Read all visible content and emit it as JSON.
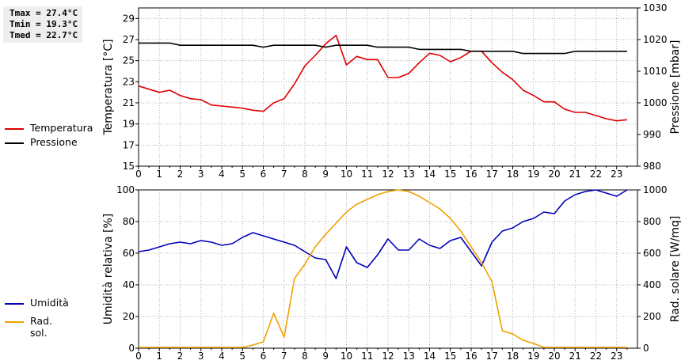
{
  "stats": {
    "tmax": "Tmax = 27.4°C",
    "tmin": "Tmin = 19.3°C",
    "tmed": "Tmed = 22.7°C"
  },
  "colors": {
    "temperature": "#dd0000",
    "pressure": "#000000",
    "humidity": "#0000bb",
    "solar": "#f0a000",
    "grid": "#b0b0b0"
  },
  "chart_data": [
    {
      "type": "line",
      "grid": true,
      "legend_placement": "left",
      "xlabel": "",
      "xticks": [
        "0",
        "1",
        "2",
        "3",
        "4",
        "5",
        "6",
        "7",
        "8",
        "9",
        "10",
        "11",
        "12",
        "13",
        "14",
        "15",
        "16",
        "17",
        "18",
        "19",
        "20",
        "21",
        "22",
        "23"
      ],
      "xlim": [
        0,
        24
      ],
      "ylabel": "Temperatura [°C]",
      "ylim": [
        15,
        30
      ],
      "yticks": [
        "15",
        "17",
        "19",
        "21",
        "23",
        "25",
        "27",
        "29"
      ],
      "y2label": "Pressione [mbar]",
      "y2lim": [
        980,
        1030
      ],
      "y2ticks": [
        "980",
        "990",
        "1000",
        "1010",
        "1020",
        "1030"
      ],
      "series": [
        {
          "name": "Temperatura",
          "axis": "left",
          "x": [
            0,
            0.5,
            1,
            1.5,
            2,
            2.5,
            3,
            3.5,
            4,
            4.5,
            5,
            5.5,
            6,
            6.5,
            7,
            7.5,
            8,
            8.5,
            9,
            9.5,
            10,
            10.5,
            11,
            11.5,
            12,
            12.5,
            13,
            13.5,
            14,
            14.5,
            15,
            15.5,
            16,
            16.5,
            17,
            17.5,
            18,
            18.5,
            19,
            19.5,
            20,
            20.5,
            21,
            21.5,
            22,
            22.5,
            23,
            23.5
          ],
          "values": [
            22.6,
            22.3,
            22.0,
            22.2,
            21.7,
            21.4,
            21.3,
            20.8,
            20.7,
            20.6,
            20.5,
            20.3,
            20.2,
            21.0,
            21.4,
            22.8,
            24.5,
            25.5,
            26.6,
            27.4,
            24.6,
            25.4,
            25.1,
            25.1,
            23.4,
            23.4,
            23.8,
            24.8,
            25.7,
            25.5,
            24.9,
            25.3,
            25.9,
            25.9,
            24.8,
            23.9,
            23.2,
            22.2,
            21.7,
            21.1,
            21.1,
            20.4,
            20.1,
            20.1,
            19.8,
            19.5,
            19.3,
            19.4
          ]
        },
        {
          "name": "Pressione",
          "axis": "right",
          "x": [
            0,
            0.5,
            1,
            1.5,
            2,
            2.5,
            3,
            3.5,
            4,
            4.5,
            5,
            5.5,
            6,
            6.5,
            7,
            7.5,
            8,
            8.5,
            9,
            9.5,
            10,
            10.5,
            11,
            11.5,
            12,
            12.5,
            13,
            13.5,
            14,
            14.5,
            15,
            15.5,
            16,
            16.5,
            17,
            17.5,
            18,
            18.5,
            19,
            19.5,
            20,
            20.5,
            21,
            21.5,
            22,
            22.5,
            23,
            23.5
          ],
          "values": [
            1018.9,
            1018.9,
            1018.9,
            1018.9,
            1018.2,
            1018.2,
            1018.2,
            1018.2,
            1018.2,
            1018.2,
            1018.2,
            1018.2,
            1017.6,
            1018.2,
            1018.2,
            1018.2,
            1018.2,
            1018.2,
            1017.6,
            1018.2,
            1018.2,
            1018.2,
            1018.2,
            1017.6,
            1017.6,
            1017.6,
            1017.6,
            1016.9,
            1016.9,
            1016.9,
            1016.9,
            1016.9,
            1016.3,
            1016.3,
            1016.3,
            1016.3,
            1016.3,
            1015.6,
            1015.6,
            1015.6,
            1015.6,
            1015.6,
            1016.3,
            1016.3,
            1016.3,
            1016.3,
            1016.3,
            1016.3
          ]
        }
      ]
    },
    {
      "type": "line",
      "grid": true,
      "legend_placement": "left",
      "xlabel": "",
      "xticks": [
        "0",
        "1",
        "2",
        "3",
        "4",
        "5",
        "6",
        "7",
        "8",
        "9",
        "10",
        "11",
        "12",
        "13",
        "14",
        "15",
        "16",
        "17",
        "18",
        "19",
        "20",
        "21",
        "22",
        "23"
      ],
      "xlim": [
        0,
        24
      ],
      "ylabel": "Umidità relativa [%]",
      "ylim": [
        0,
        100
      ],
      "yticks": [
        "0",
        "20",
        "40",
        "60",
        "80",
        "100"
      ],
      "y2label": "Rad. solare [W/mq]",
      "y2lim": [
        0,
        1000
      ],
      "y2ticks": [
        "0",
        "200",
        "400",
        "600",
        "800",
        "1000"
      ],
      "series": [
        {
          "name": "Umidità",
          "axis": "left",
          "x": [
            0,
            0.5,
            1,
            1.5,
            2,
            2.5,
            3,
            3.5,
            4,
            4.5,
            5,
            5.5,
            6,
            6.5,
            7,
            7.5,
            8,
            8.5,
            9,
            9.5,
            10,
            10.5,
            11,
            11.5,
            12,
            12.5,
            13,
            13.5,
            14,
            14.5,
            15,
            15.5,
            16,
            16.5,
            17,
            17.5,
            18,
            18.5,
            19,
            19.5,
            20,
            20.5,
            21,
            21.5,
            22,
            22.5,
            23,
            23.5
          ],
          "values": [
            61,
            62,
            64,
            66,
            67,
            66,
            68,
            67,
            65,
            66,
            70,
            73,
            71,
            69,
            67,
            65,
            61,
            57,
            56,
            44,
            64,
            54,
            51,
            59,
            69,
            62,
            62,
            69,
            65,
            63,
            68,
            70,
            61,
            52,
            67,
            74,
            76,
            80,
            82,
            86,
            85,
            93,
            97,
            99,
            100,
            98,
            96,
            100
          ]
        },
        {
          "name": "Rad. sol.",
          "axis": "right",
          "x": [
            0,
            0.5,
            1,
            1.5,
            2,
            2.5,
            3,
            3.5,
            4,
            4.5,
            5,
            5.5,
            6,
            6.5,
            7,
            7.5,
            8,
            8.5,
            9,
            9.5,
            10,
            10.5,
            11,
            11.5,
            12,
            12.5,
            13,
            13.5,
            14,
            14.5,
            15,
            15.5,
            16,
            16.5,
            17,
            17.5,
            18,
            18.5,
            19,
            19.5,
            20,
            20.5,
            21,
            21.5,
            22,
            22.5,
            23,
            23.5
          ],
          "values": [
            5,
            5,
            5,
            5,
            5,
            5,
            5,
            5,
            5,
            5,
            5,
            20,
            40,
            220,
            70,
            440,
            530,
            640,
            720,
            790,
            860,
            910,
            940,
            970,
            990,
            1000,
            990,
            960,
            920,
            880,
            820,
            740,
            640,
            540,
            420,
            110,
            90,
            50,
            30,
            5,
            5,
            5,
            5,
            5,
            5,
            5,
            5,
            5
          ]
        }
      ]
    }
  ]
}
